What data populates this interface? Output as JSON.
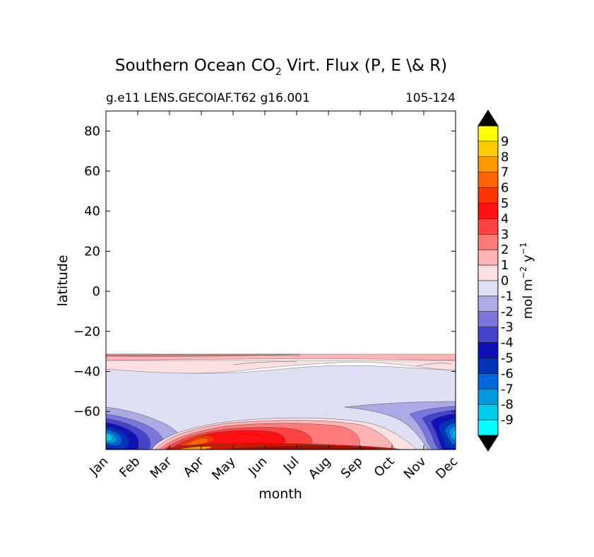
{
  "chart_data": {
    "type": "heatmap",
    "title_main": "Southern Ocean CO",
    "title_sub": "2",
    "title_rest": " Virt. Flux (P, E \\& R)",
    "subtitle_left": "g.e11 LENS.GECOIAF.T62 g16.001",
    "subtitle_right": "105-124",
    "xlabel": "month",
    "ylabel": "latitude",
    "x_tick_labels": [
      "Jan",
      "Feb",
      "Mar",
      "Apr",
      "May",
      "Jun",
      "Jul",
      "Aug",
      "Sep",
      "Oct",
      "Nov",
      "Dec"
    ],
    "x_tick_values": [
      1,
      2,
      3,
      4,
      5,
      6,
      7,
      8,
      9,
      10,
      11,
      12
    ],
    "xlim": [
      1,
      12
    ],
    "y_tick_labels": [
      "80",
      "60",
      "40",
      "20",
      "0",
      "−20",
      "−40",
      "−60"
    ],
    "y_tick_values": [
      80,
      60,
      40,
      20,
      0,
      -20,
      -40,
      -60
    ],
    "ylim": [
      -79,
      90
    ],
    "colorbar": {
      "label_main": "mol m",
      "label_sup1": "−2",
      "label_mid": " y",
      "label_sup2": "−1",
      "tick_labels": [
        "9",
        "8",
        "7",
        "6",
        "5",
        "4",
        "3",
        "2",
        "1",
        "0",
        "-1",
        "-2",
        "-3",
        "-4",
        "-5",
        "-6",
        "-7",
        "-8",
        "-9"
      ],
      "extend": "both",
      "colors": [
        "#ffff00",
        "#ffcc00",
        "#ff9900",
        "#ff6600",
        "#ff3300",
        "#ff1010",
        "#ff4444",
        "#ff7b7b",
        "#ffb3b3",
        "#ffe0e0",
        "#e0e0f4",
        "#aaaae4",
        "#7777dd",
        "#4444cc",
        "#1111bb",
        "#0033bb",
        "#0066dd",
        "#0099dd",
        "#00ccee",
        "#00ffff"
      ],
      "extend_color": "#000000"
    },
    "fields": [
      {
        "level": "1 to 2",
        "color": "#ffb3b3",
        "region": "band near -34 latitude",
        "months": [
          1,
          12
        ],
        "lat": [
          -35.5,
          -31.5
        ]
      },
      {
        "level": "0 to 1",
        "color": "#ffe0e0",
        "region": "band",
        "months": [
          1,
          12
        ],
        "lat": [
          -42,
          -35
        ]
      },
      {
        "level": "-1 to 0",
        "color": "#e0e0f4",
        "region": "band",
        "months": [
          1,
          12
        ],
        "lat": [
          -79,
          -40
        ]
      },
      {
        "level": "negative minimum",
        "value_min": -9,
        "months": [
          1,
          2.5
        ],
        "lat": [
          -79,
          -60
        ]
      },
      {
        "level": "positive maximum",
        "value_max": 9,
        "months": [
          3,
          10
        ],
        "lat": [
          -79,
          -65
        ]
      },
      {
        "level": "negative minimum",
        "value_min": -9,
        "months": [
          10.5,
          12
        ],
        "lat": [
          -79,
          -58
        ]
      }
    ]
  }
}
